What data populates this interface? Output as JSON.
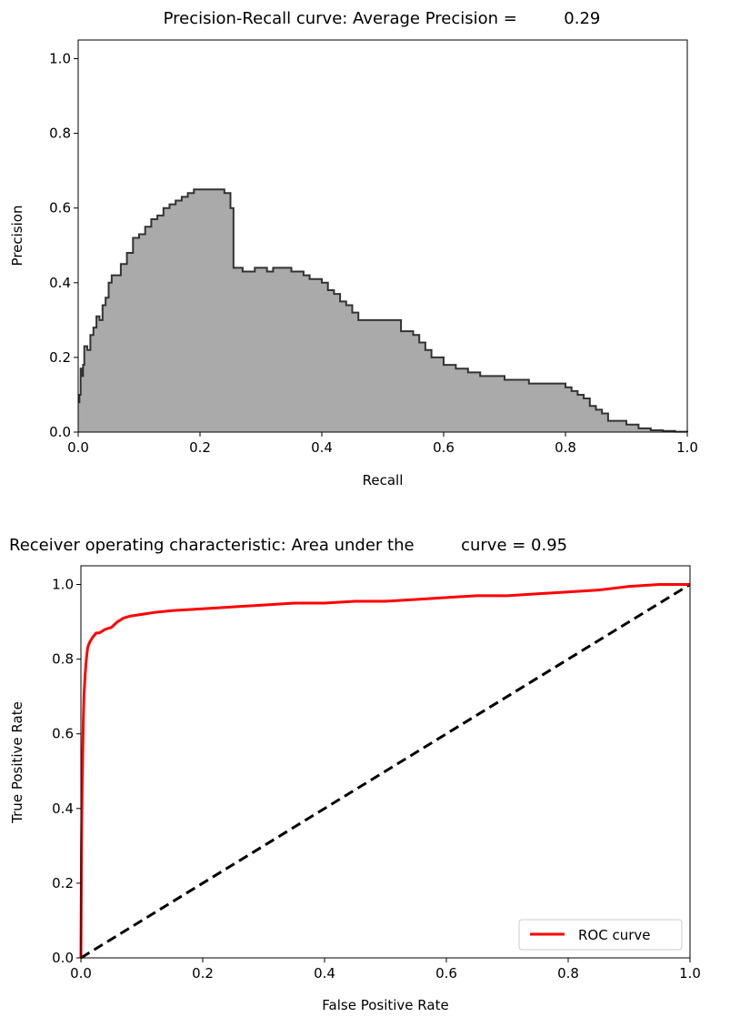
{
  "chart_data": [
    {
      "type": "area",
      "title": "Precision-Recall curve: Average Precision =         0.29",
      "xlabel": "Recall",
      "ylabel": "Precision",
      "xlim": [
        0.0,
        1.0
      ],
      "ylim": [
        0.0,
        1.05
      ],
      "xticks": [
        "0.0",
        "0.2",
        "0.4",
        "0.6",
        "0.8",
        "1.0"
      ],
      "yticks": [
        "0.0",
        "0.2",
        "0.4",
        "0.6",
        "0.8",
        "1.0"
      ],
      "grid": false,
      "series": [
        {
          "fill_color": "#aaaaaa",
          "line_color": "#333333",
          "step": true,
          "x": [
            0.0,
            0.002,
            0.004,
            0.006,
            0.008,
            0.01,
            0.015,
            0.02,
            0.025,
            0.03,
            0.035,
            0.04,
            0.045,
            0.05,
            0.055,
            0.06,
            0.07,
            0.08,
            0.09,
            0.1,
            0.11,
            0.12,
            0.13,
            0.14,
            0.15,
            0.16,
            0.17,
            0.18,
            0.19,
            0.2,
            0.21,
            0.22,
            0.23,
            0.24,
            0.25,
            0.255,
            0.26,
            0.27,
            0.28,
            0.29,
            0.3,
            0.31,
            0.32,
            0.33,
            0.34,
            0.35,
            0.36,
            0.37,
            0.38,
            0.39,
            0.4,
            0.41,
            0.42,
            0.43,
            0.44,
            0.45,
            0.46,
            0.47,
            0.48,
            0.49,
            0.5,
            0.52,
            0.53,
            0.54,
            0.55,
            0.56,
            0.57,
            0.58,
            0.6,
            0.62,
            0.64,
            0.66,
            0.68,
            0.7,
            0.72,
            0.74,
            0.76,
            0.78,
            0.8,
            0.81,
            0.82,
            0.83,
            0.84,
            0.85,
            0.86,
            0.87,
            0.88,
            0.9,
            0.92,
            0.94,
            0.96,
            0.98,
            1.0
          ],
          "y": [
            0.08,
            0.1,
            0.17,
            0.15,
            0.18,
            0.23,
            0.22,
            0.26,
            0.28,
            0.31,
            0.3,
            0.34,
            0.36,
            0.4,
            0.42,
            0.42,
            0.45,
            0.48,
            0.52,
            0.53,
            0.55,
            0.57,
            0.58,
            0.6,
            0.61,
            0.62,
            0.63,
            0.64,
            0.65,
            0.65,
            0.65,
            0.65,
            0.65,
            0.64,
            0.6,
            0.44,
            0.44,
            0.43,
            0.43,
            0.44,
            0.44,
            0.43,
            0.44,
            0.44,
            0.44,
            0.43,
            0.43,
            0.42,
            0.41,
            0.41,
            0.4,
            0.38,
            0.37,
            0.35,
            0.34,
            0.32,
            0.3,
            0.3,
            0.3,
            0.3,
            0.3,
            0.3,
            0.27,
            0.27,
            0.26,
            0.24,
            0.22,
            0.2,
            0.18,
            0.17,
            0.16,
            0.15,
            0.15,
            0.14,
            0.14,
            0.13,
            0.13,
            0.13,
            0.12,
            0.11,
            0.1,
            0.09,
            0.07,
            0.06,
            0.05,
            0.03,
            0.03,
            0.02,
            0.01,
            0.005,
            0.003,
            0.001,
            0.0
          ]
        }
      ]
    },
    {
      "type": "line",
      "title": "Receiver operating characteristic: Area under the         curve = 0.95",
      "xlabel": "False Positive Rate",
      "ylabel": "True Positive Rate",
      "xlim": [
        0.0,
        1.0
      ],
      "ylim": [
        0.0,
        1.05
      ],
      "xticks": [
        "0.0",
        "0.2",
        "0.4",
        "0.6",
        "0.8",
        "1.0"
      ],
      "yticks": [
        "0.0",
        "0.2",
        "0.4",
        "0.6",
        "0.8",
        "1.0"
      ],
      "grid": false,
      "legend_position": "lower right",
      "series": [
        {
          "name": "ROC curve",
          "color": "#ff0000",
          "x": [
            0.0,
            0.001,
            0.002,
            0.003,
            0.004,
            0.005,
            0.007,
            0.009,
            0.011,
            0.013,
            0.016,
            0.02,
            0.025,
            0.03,
            0.04,
            0.05,
            0.06,
            0.07,
            0.08,
            0.1,
            0.12,
            0.15,
            0.2,
            0.25,
            0.3,
            0.35,
            0.4,
            0.45,
            0.5,
            0.55,
            0.6,
            0.65,
            0.7,
            0.75,
            0.8,
            0.85,
            0.9,
            0.95,
            1.0
          ],
          "y": [
            0.0,
            0.3,
            0.45,
            0.55,
            0.64,
            0.7,
            0.76,
            0.8,
            0.83,
            0.84,
            0.85,
            0.86,
            0.87,
            0.87,
            0.88,
            0.885,
            0.9,
            0.91,
            0.915,
            0.92,
            0.925,
            0.93,
            0.935,
            0.94,
            0.945,
            0.95,
            0.95,
            0.955,
            0.955,
            0.96,
            0.965,
            0.97,
            0.97,
            0.975,
            0.98,
            0.985,
            0.995,
            1.0,
            1.0
          ]
        },
        {
          "color": "#000000",
          "dashed": true,
          "x": [
            0.0,
            1.0
          ],
          "y": [
            0.0,
            1.0
          ]
        }
      ]
    }
  ]
}
